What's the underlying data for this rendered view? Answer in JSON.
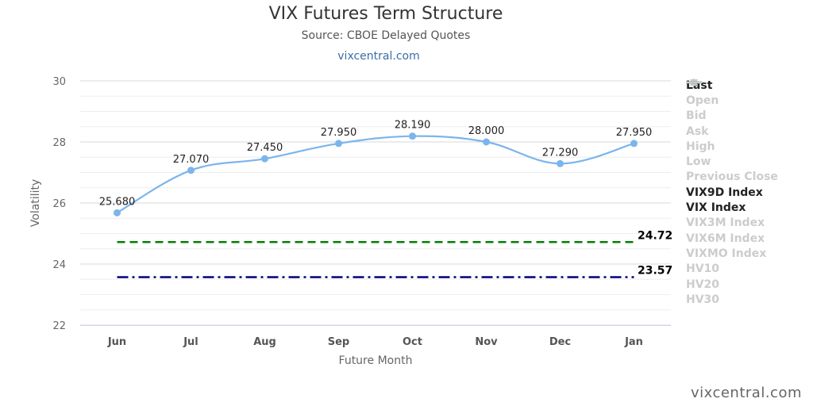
{
  "chart_data": {
    "type": "line",
    "title": "VIX Futures Term Structure",
    "subtitle": "Source: CBOE Delayed Quotes",
    "link_text": "vixcentral.com",
    "credit": "vixcentral.com",
    "xlabel": "Future Month",
    "ylabel": "Volatility",
    "ylim": [
      22,
      30
    ],
    "yticks": [
      22,
      24,
      26,
      28,
      30
    ],
    "grid": true,
    "legend_position": "right",
    "categories": [
      "Jun",
      "Jul",
      "Aug",
      "Sep",
      "Oct",
      "Nov",
      "Dec",
      "Jan"
    ],
    "series": [
      {
        "name": "Last",
        "values": [
          25.68,
          27.07,
          27.45,
          27.95,
          28.19,
          28.0,
          27.29,
          27.95
        ],
        "labels": [
          "25.680",
          "27.070",
          "27.450",
          "27.950",
          "28.190",
          "28.000",
          "27.290",
          "27.950"
        ],
        "color": "#7cb5ec",
        "visible": true
      },
      {
        "name": "VIX9D Index",
        "value": 23.57,
        "label": "23.57",
        "color": "#000080",
        "visible": true
      },
      {
        "name": "VIX Index",
        "value": 24.72,
        "label": "24.72",
        "color": "#008000",
        "visible": true
      }
    ],
    "legend": [
      {
        "name": "Last",
        "visible": true,
        "color": "#7cb5ec",
        "symbol": "circle"
      },
      {
        "name": "Open",
        "visible": false,
        "symbol": "diamond"
      },
      {
        "name": "Bid",
        "visible": false,
        "symbol": "square"
      },
      {
        "name": "Ask",
        "visible": false,
        "symbol": "triangle"
      },
      {
        "name": "High",
        "visible": false,
        "symbol": "triangle-down"
      },
      {
        "name": "Low",
        "visible": false,
        "symbol": "circle"
      },
      {
        "name": "Previous Close",
        "visible": false,
        "symbol": "diamond"
      },
      {
        "name": "VIX9D Index",
        "visible": true,
        "color": "#000080",
        "symbol": "line"
      },
      {
        "name": "VIX Index",
        "visible": true,
        "color": "#008000",
        "symbol": "line"
      },
      {
        "name": "VIX3M Index",
        "visible": false,
        "symbol": "line"
      },
      {
        "name": "VIX6M Index",
        "visible": false,
        "symbol": "dotted"
      },
      {
        "name": "VIXMO Index",
        "visible": false,
        "symbol": "dashed"
      },
      {
        "name": "HV10",
        "visible": false,
        "symbol": "dashed"
      },
      {
        "name": "HV20",
        "visible": false,
        "symbol": "dashed"
      },
      {
        "name": "HV30",
        "visible": false,
        "symbol": "dashed"
      }
    ]
  }
}
